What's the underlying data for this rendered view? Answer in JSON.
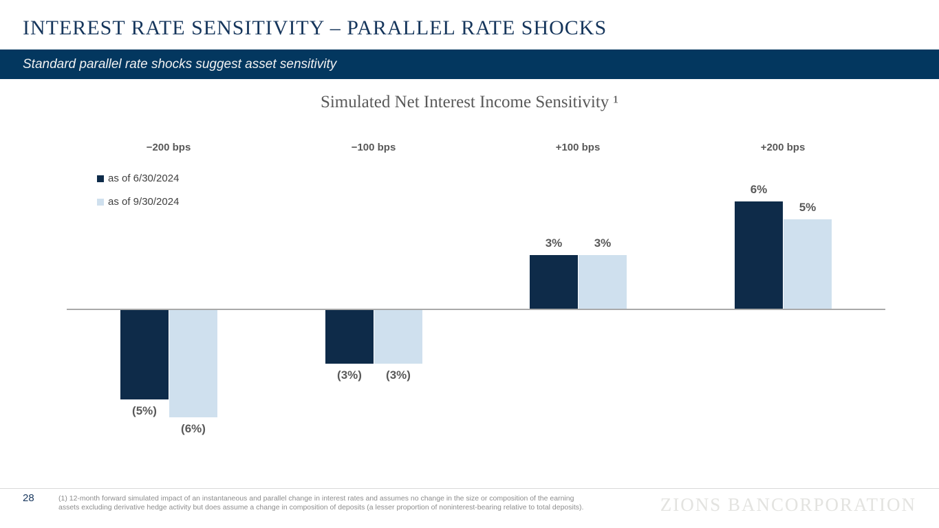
{
  "header": {
    "title": "INTEREST RATE SENSITIVITY – PARALLEL RATE SHOCKS",
    "subtitle": "Standard parallel rate shocks suggest asset sensitivity"
  },
  "chart_data": {
    "type": "bar",
    "title": "Simulated Net Interest Income Sensitivity ¹",
    "categories": [
      "−200 bps",
      "−100 bps",
      "+100 bps",
      "+200 bps"
    ],
    "series": [
      {
        "name": "as of 6/30/2024",
        "color": "#0e2b49",
        "values": [
          -5,
          -3,
          3,
          6
        ],
        "labels": [
          "(5%)",
          "(3%)",
          "3%",
          "6%"
        ]
      },
      {
        "name": "as of 9/30/2024",
        "color": "#cfe0ee",
        "values": [
          -6,
          -3,
          3,
          5
        ],
        "labels": [
          "(6%)",
          "(3%)",
          "3%",
          "5%"
        ]
      }
    ],
    "unit": "%",
    "baseline": 0,
    "grid": false,
    "legend_position": "top-left",
    "axis_color": "#a9a9a9",
    "label_color": "#595959"
  },
  "footer": {
    "page_number": "28",
    "footnote_lines": [
      "(1) 12-month forward simulated impact of an instantaneous and parallel change in interest rates and assumes no change in the size or composition of the earning",
      "assets excluding derivative hedge activity but does assume a change in composition of deposits (a lesser proportion of noninterest-bearing relative to total deposits)."
    ],
    "watermark": "ZIONS BANCORPORATION"
  }
}
